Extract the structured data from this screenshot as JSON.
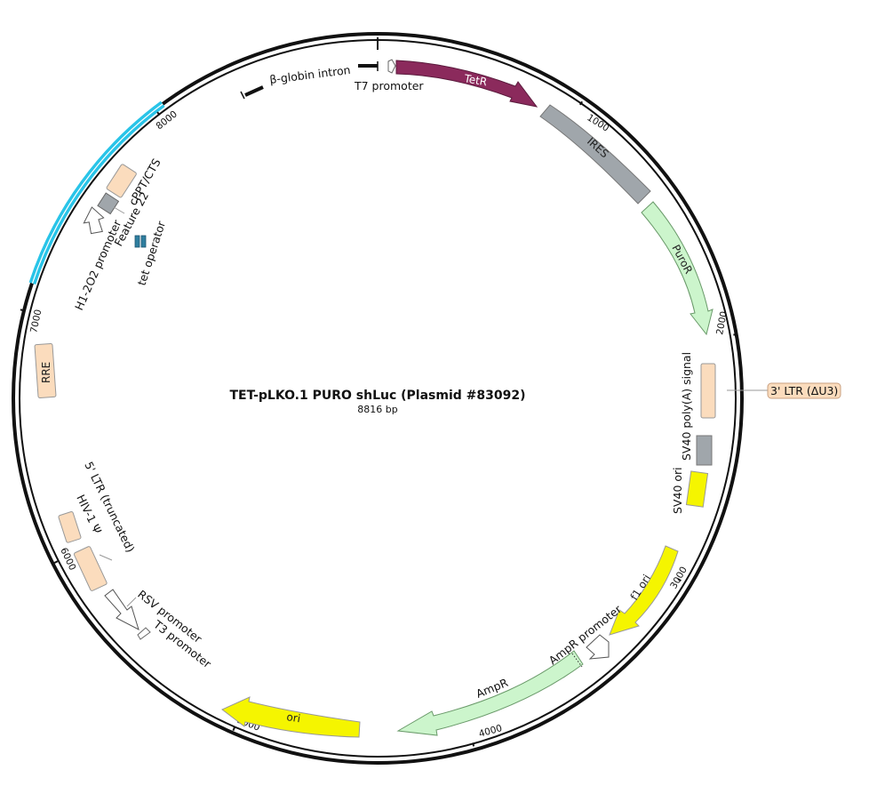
{
  "plasmid": {
    "name": "TET-pLKO.1 PURO shLuc (Plasmid #83092)",
    "size": "8816 bp"
  },
  "ticks": [
    "1000",
    "2000",
    "3000",
    "4000",
    "5000",
    "6000",
    "7000",
    "8000"
  ],
  "features": {
    "tetr": "TetR",
    "ires": "IRES",
    "puror": "PuroR",
    "sv40_polya": "SV40 poly(A) signal",
    "ltr3": "3' LTR (ΔU3)",
    "sv40_ori": "SV40 ori",
    "f1_ori": "f1 ori",
    "ampr_promoter": "AmpR promoter",
    "ampr": "AmpR",
    "ori": "ori",
    "t3_promoter": "T3 promoter",
    "rsv_promoter": "RSV promoter",
    "ltr5": "5' LTR (truncated)",
    "hiv_psi": "HIV-1 Ψ",
    "rre": "RRE",
    "h1_promoter": "H1-2O2 promoter",
    "feature22": "Feature 22",
    "cppt": "cPPT/CTS",
    "tet_operator": "tet operator",
    "bglobin": "β-globin intron",
    "t7_promoter": "T7 promoter"
  },
  "colors": {
    "tetr": "#8b2a5c",
    "ires": "#a0a6ab",
    "puror": "#ccf5cc",
    "sv40_polya": "#fbdcbd",
    "sv40_ori_box": "#a0a6ab",
    "sv40_ori": "#f5f500",
    "f1_ori": "#f5f500",
    "ampr": "#ccf5cc",
    "ori": "#f5f500",
    "rre": "#fbdcbd",
    "ltr5": "#fbdcbd",
    "cppt": "#fbdcbd",
    "feature22": "#a0a6ab",
    "tet_operator": "#2f7fa0",
    "highlight_arc": "#29c4e8"
  }
}
